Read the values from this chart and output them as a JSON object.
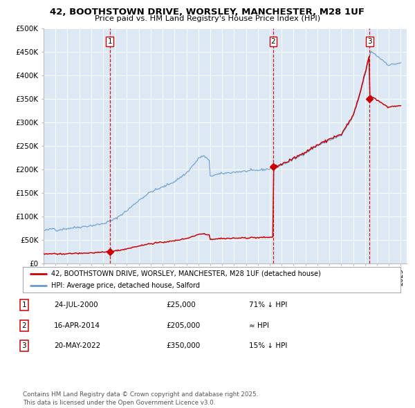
{
  "title1": "42, BOOTHSTOWN DRIVE, WORSLEY, MANCHESTER, M28 1UF",
  "title2": "Price paid vs. HM Land Registry's House Price Index (HPI)",
  "legend_red": "42, BOOTHSTOWN DRIVE, WORSLEY, MANCHESTER, M28 1UF (detached house)",
  "legend_blue": "HPI: Average price, detached house, Salford",
  "sale_dates_str": [
    "24-JUL-2000",
    "16-APR-2014",
    "20-MAY-2022"
  ],
  "sale_prices": [
    25000,
    205000,
    350000
  ],
  "sale_labels": [
    "1",
    "2",
    "3"
  ],
  "sale_notes": [
    "71% ↓ HPI",
    "≈ HPI",
    "15% ↓ HPI"
  ],
  "vline_years": [
    2000.56,
    2014.29,
    2022.38
  ],
  "plot_bg": "#dce9f5",
  "grid_color": "#ffffff",
  "red_color": "#cc0000",
  "blue_color": "#6699cc",
  "footer": "Contains HM Land Registry data © Crown copyright and database right 2025.\nThis data is licensed under the Open Government Licence v3.0.",
  "ylim": [
    0,
    500000
  ],
  "yticks": [
    0,
    50000,
    100000,
    150000,
    200000,
    250000,
    300000,
    350000,
    400000,
    450000,
    500000
  ],
  "ytick_labels": [
    "£0",
    "£50K",
    "£100K",
    "£150K",
    "£200K",
    "£250K",
    "£300K",
    "£350K",
    "£400K",
    "£450K",
    "£500K"
  ],
  "xlim_start": 1995.0,
  "xlim_end": 2025.5
}
